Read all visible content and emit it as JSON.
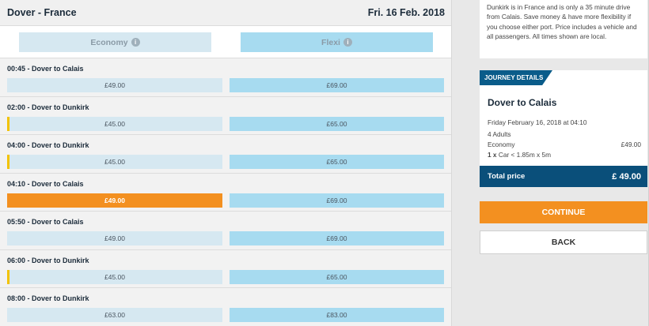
{
  "header": {
    "route": "Dover - France",
    "date": "Fri. 16 Feb. 2018"
  },
  "fare_types": {
    "economy": "Economy",
    "flexi": "Flexi",
    "info_icon": "i"
  },
  "sailings": [
    {
      "title": "00:45 - Dover to Calais",
      "economy": "£49.00",
      "flexi": "£69.00",
      "marker": false,
      "selected": false
    },
    {
      "title": "02:00 - Dover to Dunkirk",
      "economy": "£45.00",
      "flexi": "£65.00",
      "marker": true,
      "selected": false
    },
    {
      "title": "04:00 - Dover to Dunkirk",
      "economy": "£45.00",
      "flexi": "£65.00",
      "marker": true,
      "selected": false
    },
    {
      "title": "04:10 - Dover to Calais",
      "economy": "£49.00",
      "flexi": "£69.00",
      "marker": false,
      "selected": true
    },
    {
      "title": "05:50 - Dover to Calais",
      "economy": "£49.00",
      "flexi": "£69.00",
      "marker": false,
      "selected": false
    },
    {
      "title": "06:00 - Dover to Dunkirk",
      "economy": "£45.00",
      "flexi": "£65.00",
      "marker": true,
      "selected": false
    },
    {
      "title": "08:00 - Dover to Dunkirk",
      "economy": "£63.00",
      "flexi": "£83.00",
      "marker": false,
      "selected": false
    }
  ],
  "info_text": "Dunkirk is in France and is only a 35 minute drive from Calais. Save money & have more flexibility if you choose either port. Price includes a vehicle and all passengers. All times shown are local.",
  "journey": {
    "label": "JOURNEY DETAILS",
    "route": "Dover to Calais",
    "datetime": "Friday February 16, 2018 at 04:10",
    "passengers": "4 Adults",
    "fare_class": "Economy",
    "fare_price": "£49.00",
    "vehicle_qty": "1 x",
    "vehicle_desc": "Car < 1.85m x 5m",
    "total_label": "Total price",
    "total_value": "£ 49.00"
  },
  "buttons": {
    "continue": "CONTINUE",
    "back": "BACK"
  },
  "colors": {
    "accent": "#f39020",
    "brand_blue": "#0a4f7a",
    "economy_bg": "#d6e8f1",
    "flexi_bg": "#a7dbf0",
    "marker": "#f2c200"
  }
}
